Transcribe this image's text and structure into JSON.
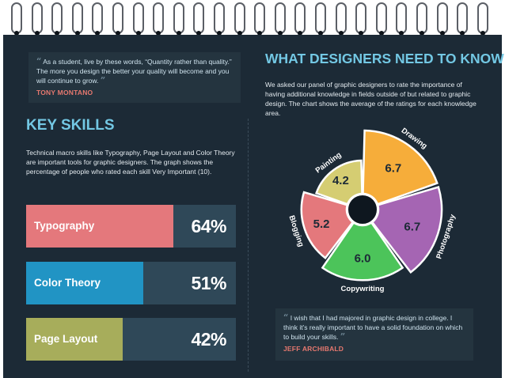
{
  "quote_top": {
    "text": "As a student, live by these words, “Quantity rather than quality.” The more you design the better your quality will become and you will continue  to grow.",
    "author": "TONY MONTANO"
  },
  "quote_bottom": {
    "text": "I wish that I had majored in graphic design in college. I think it’s really important to have a solid foundation on which to build your skills.",
    "author": "JEFF ARCHIBALD"
  },
  "key_skills": {
    "title": "KEY SKILLS",
    "description": "Technical macro skills like Typography, Page Layout and Color Theory are important tools for graphic designers. The graph shows the percentage of people who rated each skill Very Important (10).",
    "skills": [
      {
        "label": "Typography",
        "percent_label": "64%",
        "value": 64,
        "color": "#e4787c"
      },
      {
        "label": "Color Theory",
        "percent_label": "51%",
        "value": 51,
        "color": "#2194c4"
      },
      {
        "label": "Page Layout",
        "percent_label": "42%",
        "value": 42,
        "color": "#a7ad5b"
      }
    ]
  },
  "designers": {
    "title": "WHAT DESIGNERS NEED TO KNOW",
    "description": "We asked our panel of graphic designers to rate the importance of having additional knowledge in fields outside of but related to graphic design. The chart shows the average of the ratings for each knowledge area."
  },
  "chart_data": {
    "type": "pie",
    "categories": [
      "Drawing",
      "Photography",
      "Copywriting",
      "Blogging",
      "Painting"
    ],
    "values": [
      6.7,
      6.7,
      6.0,
      5.2,
      4.2
    ],
    "value_labels": [
      "6.7",
      "6.7",
      "6.0",
      "5.2",
      "4.2"
    ],
    "colors": [
      "#f6ad3a",
      "#a565b3",
      "#4cc45a",
      "#e4787c",
      "#d5cd72"
    ],
    "max_value": 6.7
  },
  "colors": {
    "background": "#1c2a36",
    "accent_title": "#73c8e4",
    "author": "#e6786f",
    "bar_track": "#2f4858"
  }
}
